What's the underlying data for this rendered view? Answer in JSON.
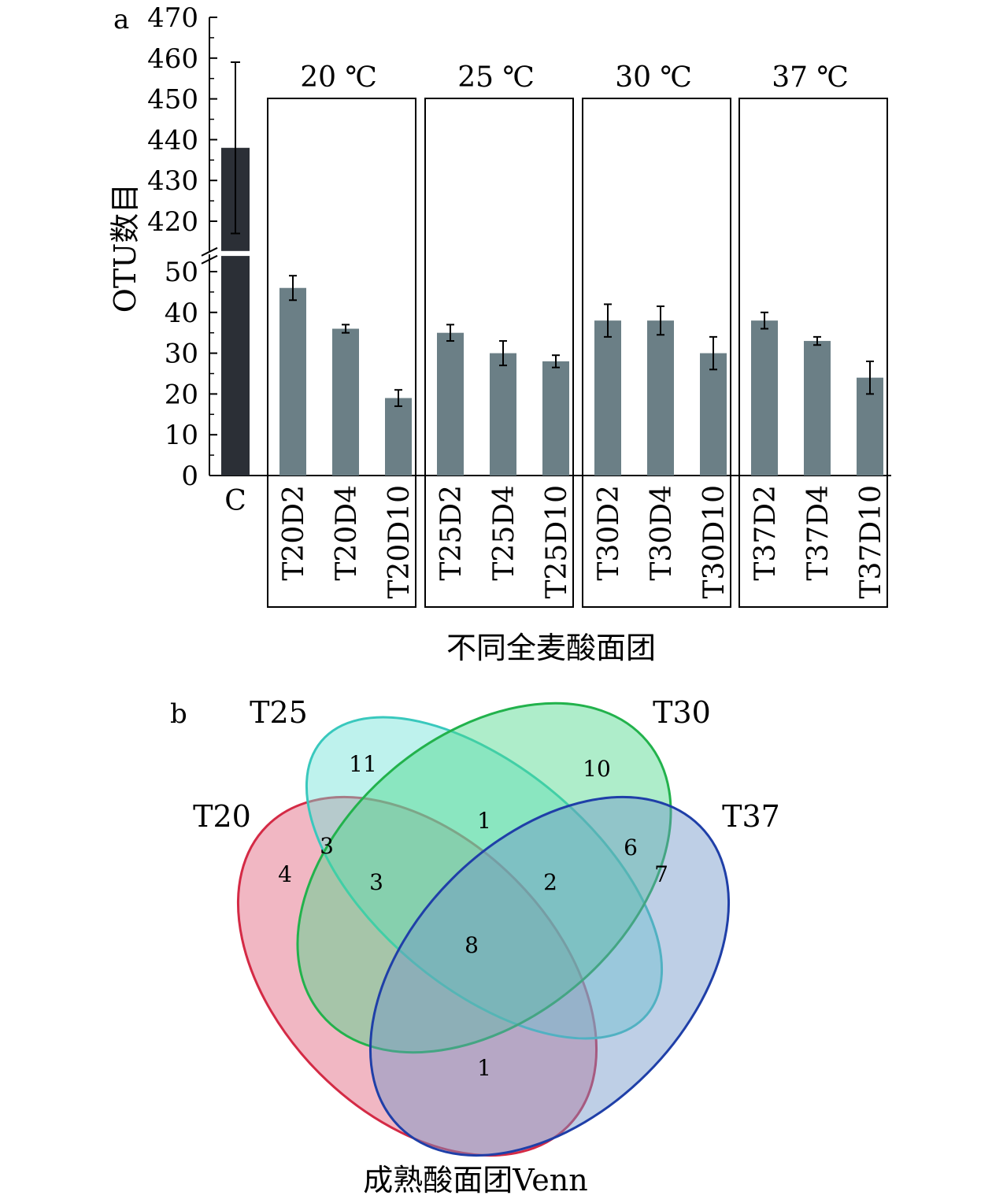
{
  "chart_data": [
    {
      "type": "bar",
      "panel_label": "a",
      "ylabel": "OTU数目",
      "xlabel": "不同全麦酸面团",
      "y_axis_break": true,
      "ylim_lower": [
        0,
        55
      ],
      "ylim_upper": [
        410,
        470
      ],
      "yticks_lower": [
        0,
        10,
        20,
        30,
        40,
        50
      ],
      "yticks_upper": [
        420,
        430,
        440,
        450,
        460,
        470
      ],
      "control": {
        "category": "C",
        "value": 438,
        "error": 21,
        "color": "#2b2f36"
      },
      "bar_color": "#6b7f86",
      "groups": [
        {
          "label": "20 ℃",
          "categories": [
            "T20D2",
            "T20D4",
            "T20D10"
          ],
          "values": [
            46,
            36,
            19
          ],
          "errors": [
            3,
            1,
            2
          ]
        },
        {
          "label": "25 ℃",
          "categories": [
            "T25D2",
            "T25D4",
            "T25D10"
          ],
          "values": [
            35,
            30,
            28
          ],
          "errors": [
            2,
            3,
            1.5
          ]
        },
        {
          "label": "30 ℃",
          "categories": [
            "T30D2",
            "T30D4",
            "T30D10"
          ],
          "values": [
            38,
            38,
            30
          ],
          "errors": [
            4,
            3.5,
            4
          ]
        },
        {
          "label": "37 ℃",
          "categories": [
            "T37D2",
            "T37D4",
            "T37D10"
          ],
          "values": [
            38,
            33,
            24
          ],
          "errors": [
            2,
            1,
            4
          ]
        }
      ]
    },
    {
      "type": "venn",
      "panel_label": "b",
      "title": "成熟酸面团Venn",
      "sets": [
        {
          "name": "T20",
          "color": "#e0607a"
        },
        {
          "name": "T25",
          "color": "#6fe2d6"
        },
        {
          "name": "T30",
          "color": "#4cd68a"
        },
        {
          "name": "T37",
          "color": "#6f95c8"
        }
      ],
      "regions": [
        {
          "id": "T25-only",
          "value": "11"
        },
        {
          "id": "T30-only",
          "value": "10"
        },
        {
          "id": "T25-T30",
          "value": "1"
        },
        {
          "id": "T20-T25",
          "value": "3"
        },
        {
          "id": "T30-T37",
          "value": "6"
        },
        {
          "id": "T20-only",
          "value": "4"
        },
        {
          "id": "T20-T25-T30",
          "value": "3"
        },
        {
          "id": "T25-T30-T37",
          "value": "2"
        },
        {
          "id": "T37-only",
          "value": "7"
        },
        {
          "id": "all",
          "value": "8"
        },
        {
          "id": "T20-T37",
          "value": "1"
        }
      ]
    }
  ]
}
